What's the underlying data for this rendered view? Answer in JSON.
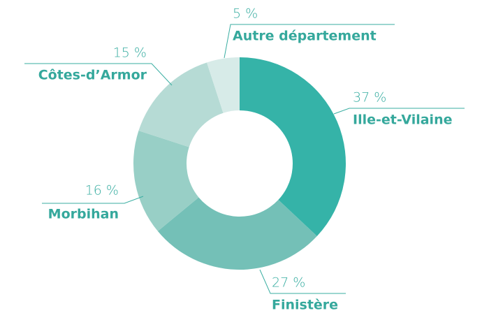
{
  "chart_data": {
    "type": "donut",
    "categories": [
      "Ille-et-Vilaine",
      "Finistère",
      "Morbihan",
      "Côtes-d’Armor",
      "Autre département"
    ],
    "values": [
      37,
      27,
      16,
      15,
      5
    ],
    "value_labels": [
      "37 %",
      "27 %",
      "16 %",
      "15 %",
      "5 %"
    ],
    "colors": [
      "#35b3a8",
      "#74c0b7",
      "#98cfc6",
      "#b6dbd5",
      "#d7ebe8"
    ]
  }
}
